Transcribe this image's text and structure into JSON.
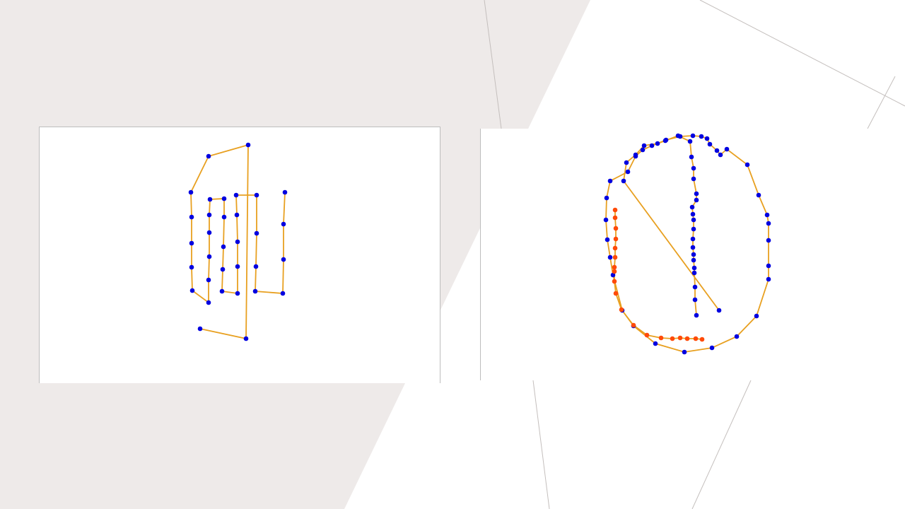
{
  "colors": {
    "background_band": "#eeeae9",
    "background": "#ffffff",
    "line": "#e8a020",
    "point_primary": "#0000e0",
    "point_highlight": "#ff4a08",
    "panel_border": "#bdbdbd",
    "guide_line": "#c4bfbd"
  },
  "chart_data": [
    {
      "type": "line",
      "series": [
        {
          "values": [
            [
              282,
              464
            ],
            [
              347,
              478
            ],
            [
              350,
              204
            ],
            [
              294,
              220
            ],
            [
              269,
              271
            ],
            [
              270,
              306
            ],
            [
              270,
              343
            ],
            [
              270,
              377
            ],
            [
              271,
              410
            ],
            [
              294,
              427
            ],
            [
              294,
              395
            ],
            [
              295,
              362
            ],
            [
              295,
              328
            ],
            [
              295,
              303
            ],
            [
              296,
              281
            ],
            [
              316,
              280
            ],
            [
              316,
              306
            ],
            [
              315,
              348
            ],
            [
              314,
              380
            ],
            [
              313,
              411
            ],
            [
              335,
              414
            ],
            [
              335,
              376
            ],
            [
              335,
              341
            ],
            [
              334,
              303
            ],
            [
              333,
              275
            ],
            [
              362,
              275
            ],
            [
              362,
              329
            ],
            [
              361,
              376
            ],
            [
              360,
              411
            ],
            [
              399,
              414
            ],
            [
              400,
              366
            ],
            [
              400,
              316
            ],
            [
              402,
              271
            ]
          ]
        }
      ]
    },
    {
      "type": "line",
      "series": [
        {
          "color": "primary",
          "values": [
            [
              984,
              446
            ],
            [
              982,
              424
            ],
            [
              982,
              406
            ],
            [
              981,
              386
            ],
            [
              981,
              379
            ],
            [
              980,
              368
            ],
            [
              980,
              360
            ],
            [
              979,
              350
            ],
            [
              979,
              338
            ],
            [
              980,
              324
            ],
            [
              980,
              311
            ],
            [
              979,
              303
            ],
            [
              978,
              293
            ],
            [
              984,
              283
            ],
            [
              984,
              274
            ],
            [
              980,
              253
            ],
            [
              980,
              238
            ],
            [
              977,
              222
            ],
            [
              975,
              200
            ],
            [
              958,
              192
            ],
            [
              940,
              199
            ],
            [
              921,
              206
            ],
            [
              908,
              212
            ],
            [
              898,
              221
            ],
            [
              887,
              243
            ],
            [
              862,
              256
            ],
            [
              857,
              280
            ],
            [
              856,
              311
            ],
            [
              858,
              339
            ],
            [
              862,
              364
            ],
            [
              866,
              389
            ],
            [
              879,
              439
            ],
            [
              895,
              461
            ],
            [
              926,
              486
            ],
            [
              967,
              498
            ],
            [
              1006,
              492
            ],
            [
              1041,
              476
            ],
            [
              1069,
              447
            ],
            [
              1086,
              395
            ],
            [
              1086,
              376
            ],
            [
              1086,
              340
            ],
            [
              1086,
              316
            ],
            [
              1084,
              304
            ],
            [
              1072,
              276
            ],
            [
              1056,
              233
            ],
            [
              1027,
              211
            ],
            [
              1018,
              219
            ],
            [
              1013,
              213
            ],
            [
              1003,
              204
            ],
            [
              999,
              196
            ],
            [
              991,
              193
            ],
            [
              979,
              192
            ],
            [
              961,
              193
            ],
            [
              941,
              198
            ],
            [
              929,
              203
            ],
            [
              910,
              206
            ],
            [
              898,
              219
            ],
            [
              885,
              230
            ],
            [
              881,
              256
            ],
            [
              1016,
              439
            ]
          ]
        },
        {
          "color": "highlight",
          "values": [
            [
              869,
              297
            ],
            [
              869,
              308
            ],
            [
              870,
              323
            ],
            [
              870,
              338
            ],
            [
              869,
              351
            ],
            [
              869,
              364
            ],
            [
              868,
              378
            ],
            [
              868,
              384
            ],
            [
              868,
              398
            ],
            [
              870,
              415
            ],
            [
              878,
              438
            ],
            [
              895,
              460
            ],
            [
              914,
              474
            ],
            [
              934,
              478
            ],
            [
              950,
              479
            ],
            [
              961,
              478
            ],
            [
              971,
              479
            ],
            [
              983,
              479
            ],
            [
              992,
              480
            ]
          ]
        }
      ]
    }
  ]
}
